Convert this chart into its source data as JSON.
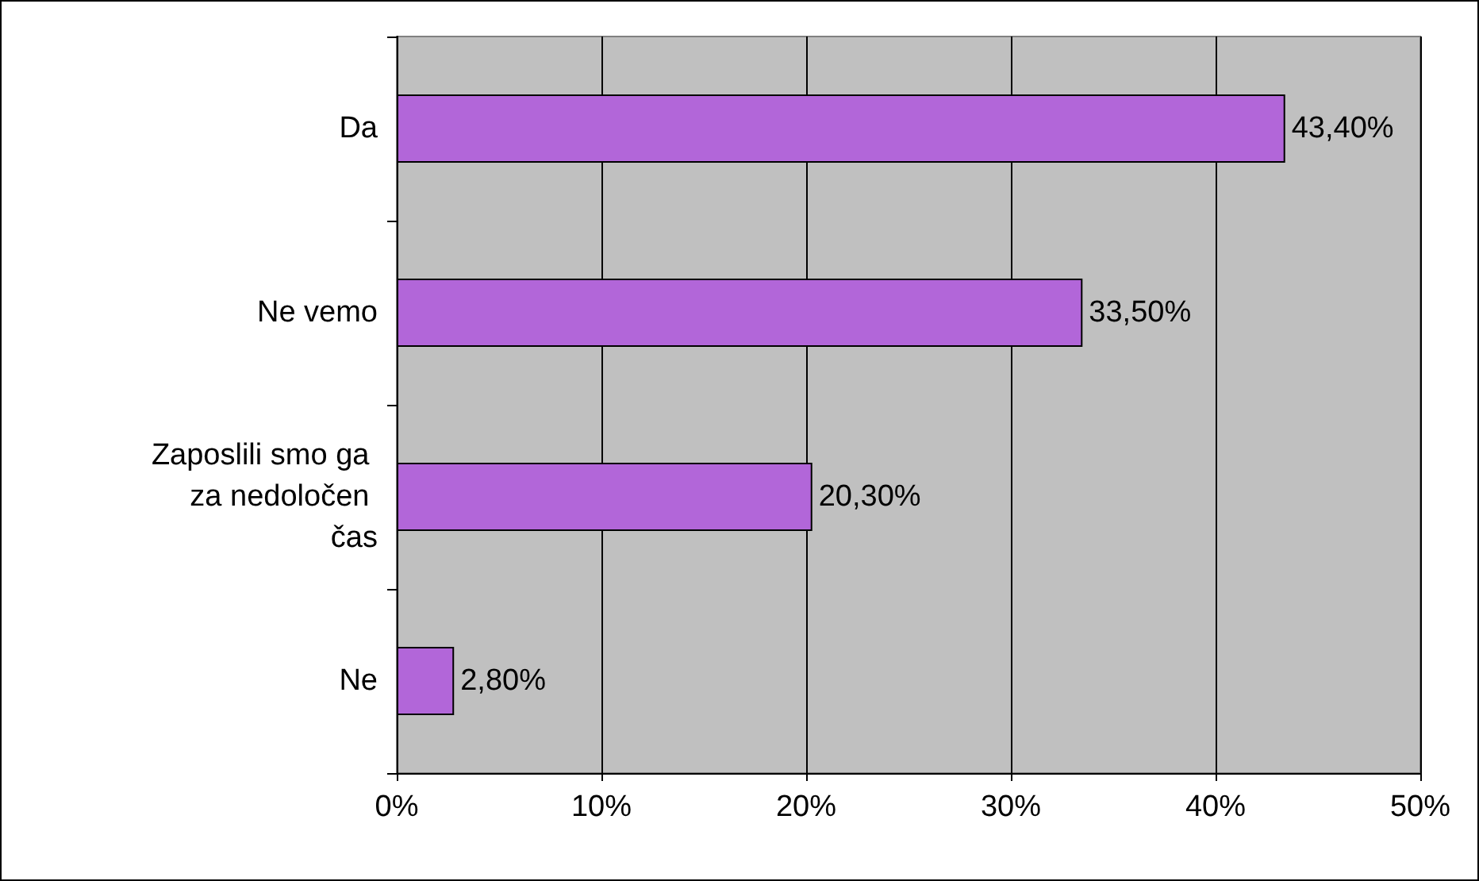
{
  "chart_data": {
    "type": "bar",
    "orientation": "horizontal",
    "categories": [
      "Da",
      "Ne vemo",
      "Zaposlili smo ga za nedoločen čas",
      "Ne"
    ],
    "values": [
      43.4,
      33.5,
      20.3,
      2.8
    ],
    "value_labels": [
      "43,40%",
      "33,50%",
      "20,30%",
      "2,80%"
    ],
    "color": "#b266d9",
    "xlim": [
      0,
      50
    ],
    "xticks": [
      {
        "value": 0,
        "label": "0%"
      },
      {
        "value": 10,
        "label": "10%"
      },
      {
        "value": 20,
        "label": "20%"
      },
      {
        "value": 30,
        "label": "30%"
      },
      {
        "value": 40,
        "label": "40%"
      },
      {
        "value": 50,
        "label": "50%"
      }
    ],
    "grid": "x"
  }
}
